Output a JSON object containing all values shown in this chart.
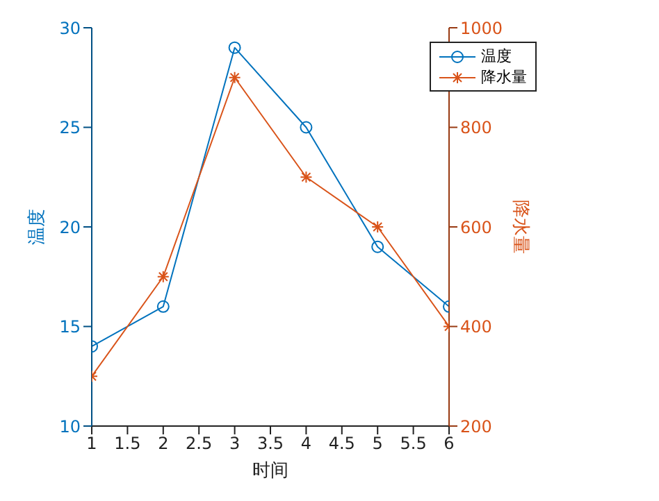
{
  "chart_data": {
    "type": "line",
    "xlabel": "时间",
    "ylabel": "温度",
    "y2label": "降水量",
    "x": [
      1,
      2,
      3,
      4,
      5,
      6
    ],
    "xlim": [
      1,
      6
    ],
    "xticks": [
      1,
      1.5,
      2,
      2.5,
      3,
      3.5,
      4,
      4.5,
      5,
      5.5,
      6
    ],
    "ylim": [
      10,
      30
    ],
    "yticks": [
      10,
      15,
      20,
      25,
      30
    ],
    "y2lim": [
      200,
      1000
    ],
    "y2ticks": [
      200,
      400,
      600,
      800,
      1000
    ],
    "legend": "top right",
    "grid": false,
    "series": [
      {
        "name": "温度",
        "color": "#0072bd",
        "values": [
          14,
          16,
          29,
          25,
          19,
          16
        ],
        "marker": "circle"
      },
      {
        "name": "降水量",
        "color": "#d95319",
        "values": [
          300,
          500,
          900,
          700,
          600,
          400
        ],
        "marker": "cross",
        "axis": "y2"
      }
    ]
  }
}
